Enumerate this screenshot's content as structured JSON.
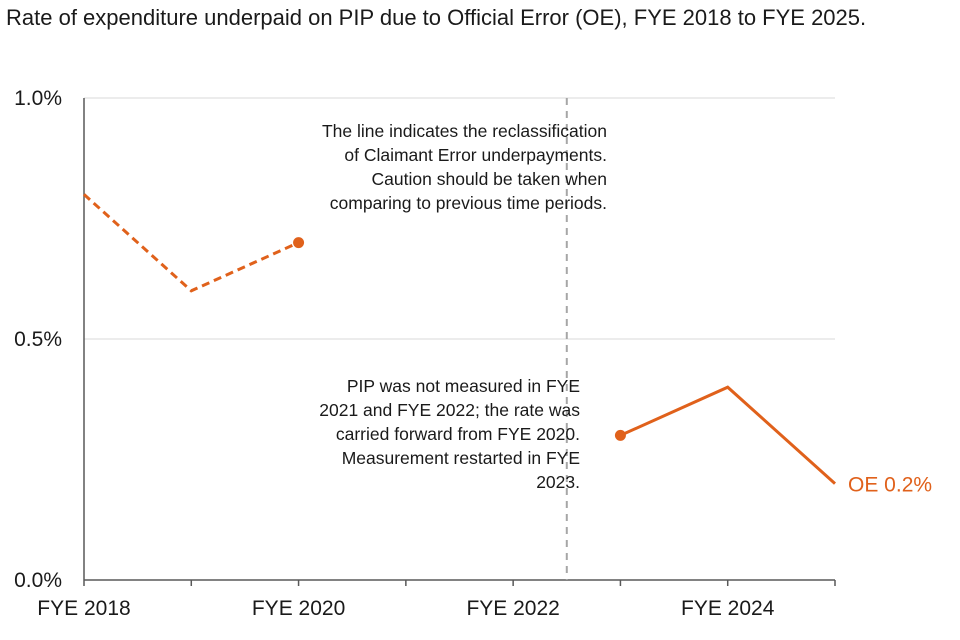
{
  "title": "Rate of expenditure underpaid on PIP due to Official Error (OE), FYE 2018 to FYE 2025.",
  "colors": {
    "series": "#e0611b",
    "grid": "#d9d9d9",
    "axis": "#595959",
    "divider": "#a6a6a6"
  },
  "chart_data": {
    "type": "line",
    "x": [
      "FYE 2018",
      "FYE 2019",
      "FYE 2020",
      "FYE 2021",
      "FYE 2022",
      "FYE 2023",
      "FYE 2024",
      "FYE 2025"
    ],
    "x_tick_labels": [
      "FYE 2018",
      "FYE 2020",
      "FYE 2022",
      "FYE 2024"
    ],
    "y_tick_labels": [
      "0.0%",
      "0.5%",
      "1.0%"
    ],
    "ylim": [
      0,
      1.0
    ],
    "y_unit": "%",
    "grid": true,
    "series": [
      {
        "segment": "before_reclassification",
        "style": "dashed",
        "x": [
          "FYE 2018",
          "FYE 2019",
          "FYE 2020"
        ],
        "values": [
          0.8,
          0.6,
          0.7
        ],
        "end_marker": "FYE 2020"
      },
      {
        "segment": "after_reclassification",
        "style": "solid",
        "x": [
          "FYE 2023",
          "FYE 2024",
          "FYE 2025"
        ],
        "values": [
          0.3,
          0.4,
          0.2
        ],
        "start_marker": "FYE 2023"
      }
    ],
    "end_label": "OE 0.2%",
    "divider_position": "between FYE 2022 and FYE 2023",
    "annotations": [
      {
        "name": "reclassification-note",
        "lines": [
          "The line indicates the reclassification",
          "of Claimant Error underpayments.",
          "Caution should be taken when",
          "comparing to previous time periods."
        ]
      },
      {
        "name": "measurement-note",
        "lines": [
          "PIP was not measured in FYE",
          "2021 and FYE 2022; the rate was",
          "carried forward from FYE 2020.",
          "Measurement restarted in FYE",
          "2023."
        ]
      }
    ]
  }
}
